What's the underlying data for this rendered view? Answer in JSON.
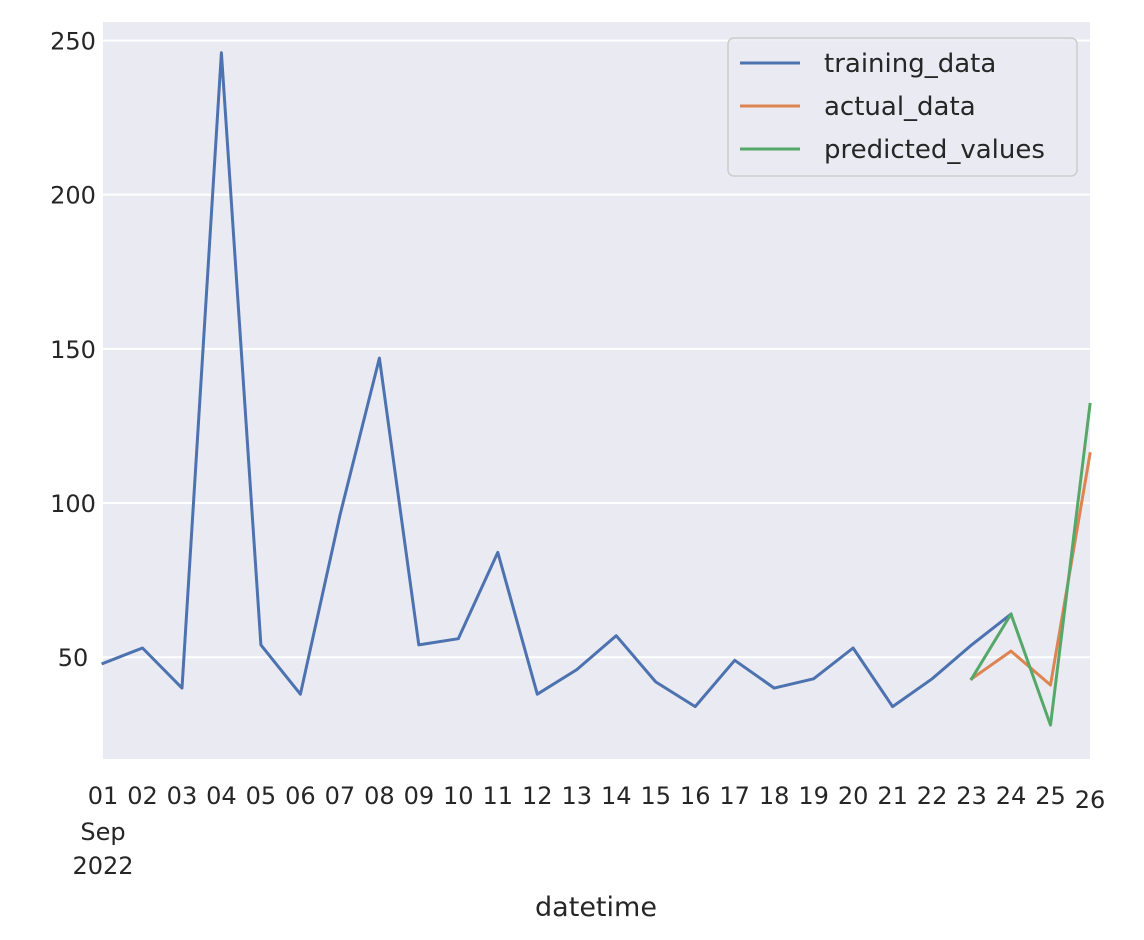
{
  "chart_data": {
    "type": "line",
    "xlabel": "datetime",
    "ylabel": "",
    "title": "",
    "grid": true,
    "legend_position": "top-right",
    "x_date_labels": {
      "month": "Sep",
      "year": "2022",
      "days": [
        "01",
        "02",
        "03",
        "04",
        "05",
        "06",
        "07",
        "08",
        "09",
        "10",
        "11",
        "12",
        "13",
        "14",
        "15",
        "16",
        "17",
        "18",
        "19",
        "20",
        "21",
        "22",
        "23",
        "24",
        "25",
        "26"
      ]
    },
    "x_dates": [
      "2022-09-01",
      "2022-09-02",
      "2022-09-03",
      "2022-09-04",
      "2022-09-05",
      "2022-09-06",
      "2022-09-07",
      "2022-09-08",
      "2022-09-09",
      "2022-09-10",
      "2022-09-11",
      "2022-09-12",
      "2022-09-13",
      "2022-09-14",
      "2022-09-15",
      "2022-09-16",
      "2022-09-17",
      "2022-09-18",
      "2022-09-19",
      "2022-09-20",
      "2022-09-21",
      "2022-09-22",
      "2022-09-23",
      "2022-09-24",
      "2022-09-25",
      "2022-09-26"
    ],
    "yticks": [
      50,
      100,
      150,
      200,
      250
    ],
    "ylim": [
      17,
      256
    ],
    "series": [
      {
        "name": "training_data",
        "color": "#4c72b0",
        "x": [
          "2022-09-01",
          "2022-09-02",
          "2022-09-03",
          "2022-09-04",
          "2022-09-05",
          "2022-09-06",
          "2022-09-07",
          "2022-09-08",
          "2022-09-09",
          "2022-09-10",
          "2022-09-11",
          "2022-09-12",
          "2022-09-13",
          "2022-09-14",
          "2022-09-15",
          "2022-09-16",
          "2022-09-17",
          "2022-09-18",
          "2022-09-19",
          "2022-09-20",
          "2022-09-21",
          "2022-09-22",
          "2022-09-23",
          "2022-09-24"
        ],
        "y": [
          48,
          53,
          40,
          246,
          54,
          38,
          96,
          147,
          54,
          56,
          84,
          38,
          46,
          57,
          42,
          34,
          49,
          40,
          43,
          53,
          34,
          43,
          54,
          64
        ]
      },
      {
        "name": "actual_data",
        "color": "#dd8452",
        "x": [
          "2022-09-23",
          "2022-09-24",
          "2022-09-25",
          "2022-09-26"
        ],
        "y": [
          43,
          52,
          41,
          116
        ]
      },
      {
        "name": "predicted_values",
        "color": "#55a868",
        "x": [
          "2022-09-23",
          "2022-09-24",
          "2022-09-25",
          "2022-09-26"
        ],
        "y": [
          43,
          64,
          28,
          132
        ]
      }
    ]
  }
}
